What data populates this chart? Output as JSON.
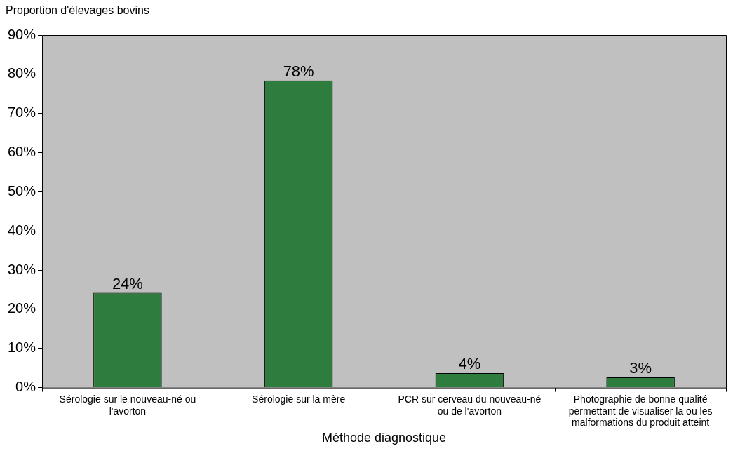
{
  "chart_data": {
    "type": "bar",
    "ylabel": "Proportion d'élevages bovins",
    "xlabel": "Méthode diagnostique",
    "categories": [
      "Sérologie sur le nouveau-né ou l'avorton",
      "Sérologie sur la mère",
      "PCR sur cerveau du nouveau-né ou de l'avorton",
      "Photographie de bonne qualité permettant de visualiser la ou les malformations du produit atteint"
    ],
    "values": [
      24.2,
      78.4,
      3.7,
      2.6
    ],
    "value_labels": [
      "24%",
      "78%",
      "4%",
      "3%"
    ],
    "color": "#2e7d3e",
    "ylim": [
      0,
      90
    ],
    "yticks": [
      {
        "value": 0,
        "label": "0%"
      },
      {
        "value": 10,
        "label": "10%"
      },
      {
        "value": 20,
        "label": "20%"
      },
      {
        "value": 30,
        "label": "30%"
      },
      {
        "value": 40,
        "label": "40%"
      },
      {
        "value": 50,
        "label": "50%"
      },
      {
        "value": 60,
        "label": "60%"
      },
      {
        "value": 70,
        "label": "70%"
      },
      {
        "value": 80,
        "label": "80%"
      },
      {
        "value": 90,
        "label": "90%"
      }
    ],
    "grid": false,
    "legend": false
  }
}
